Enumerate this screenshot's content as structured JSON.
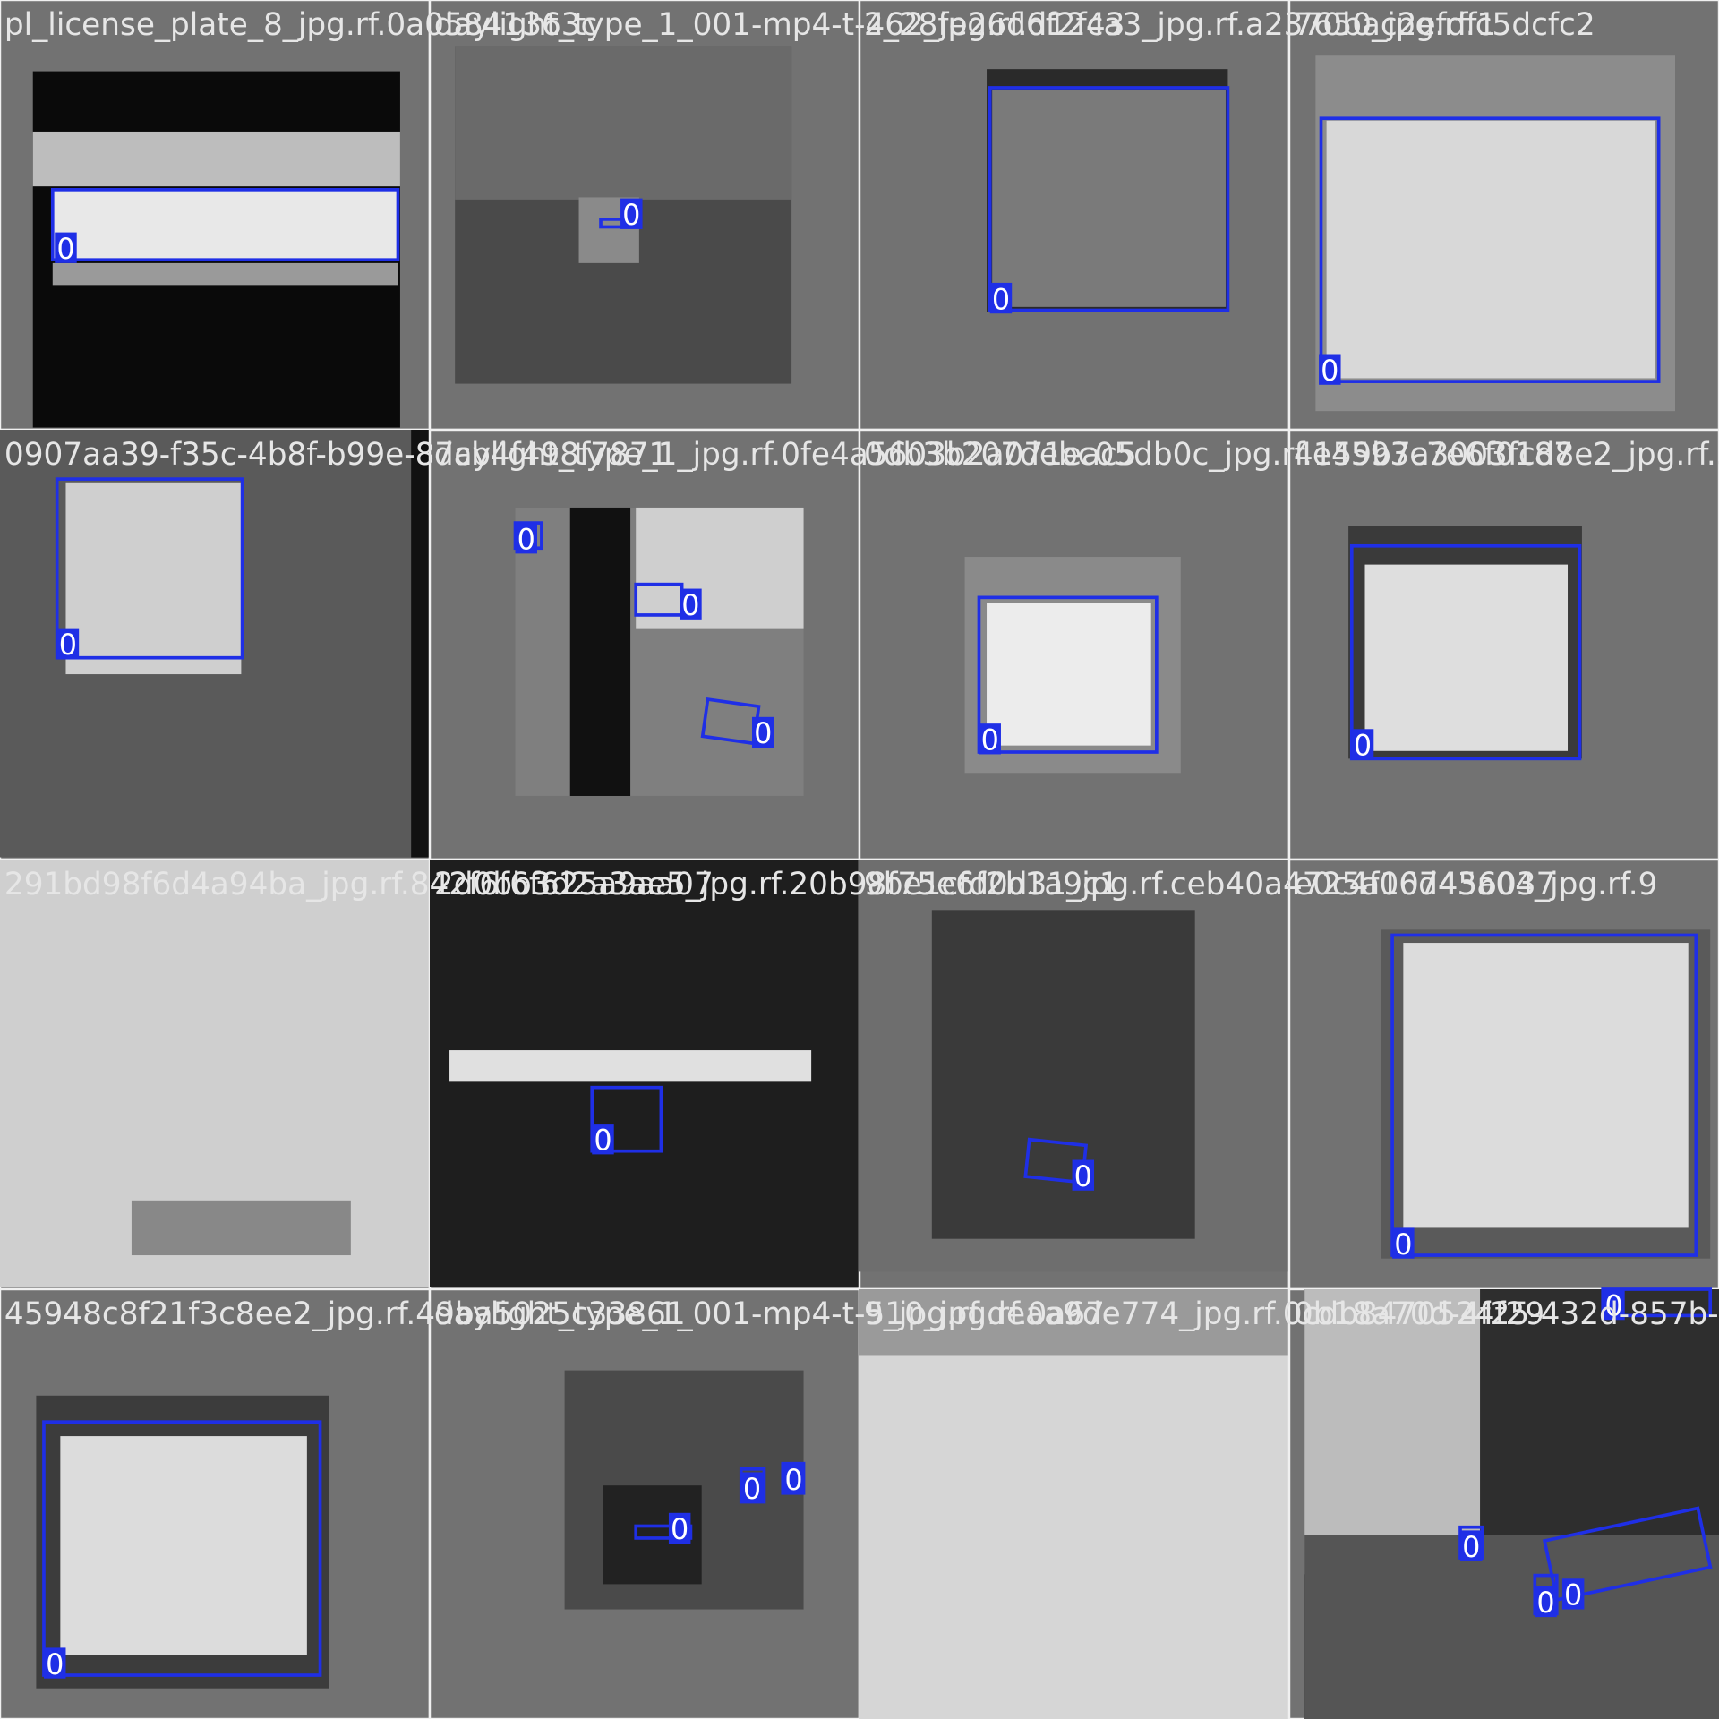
{
  "tiles": [
    {
      "filename": "pl_license_plate_8_jpg.rf.0a05841363c",
      "boxes": [
        {
          "label": "0"
        }
      ]
    },
    {
      "filename": "daylight_type_1_001-mp4-t-462_jpg.rf.d1243",
      "boxes": [
        {
          "label": "0"
        }
      ]
    },
    {
      "filename": "2_28fe26d6f2fca3_jpg.rf.a2370bac2efdf1",
      "boxes": [
        {
          "label": "0"
        }
      ]
    },
    {
      "filename": "7650_jpg.rf.c5dcfc2",
      "boxes": [
        {
          "label": "0"
        }
      ]
    },
    {
      "filename": "0907aa39-f35c-4b8f-b99e-87cb4f498f7871",
      "boxes": [
        {
          "label": "0"
        }
      ]
    },
    {
      "filename": "daylight_type_1_jpg.rf.0fe4a5603b2a071eac5",
      "boxes": [
        {
          "label": "0"
        },
        {
          "label": "0"
        },
        {
          "label": "0"
        }
      ]
    },
    {
      "filename": "0db3b207debc05db0c_jpg.rf.e4593c7e6f0187",
      "boxes": [
        {
          "label": "0"
        }
      ]
    },
    {
      "filename": "4159b7a3003fcd8e2_jpg.rf.3",
      "boxes": [
        {
          "label": "0"
        }
      ]
    },
    {
      "filename": "291bd98f6d4a94ba_jpg.rf.842f6f6f625a9aa07",
      "boxes": []
    },
    {
      "filename": "2d0bb3d2a3ae5_jpg.rf.20b98f75e6f2b1a9c1",
      "boxes": [
        {
          "label": "0"
        }
      ]
    },
    {
      "filename": "9be1cfd0d31_jpg.rf.ceb40a4725a107456037",
      "boxes": [
        {
          "label": "0"
        }
      ]
    },
    {
      "filename": "e0c4f06d43a04_jpg.rf.9",
      "boxes": [
        {
          "label": "0"
        }
      ]
    },
    {
      "filename": "45948c8f21f3c8ee2_jpg.rf.49ba5025c33861",
      "boxes": [
        {
          "label": "0"
        }
      ]
    },
    {
      "filename": "daylight_type_1_001-mp4-t-510_jpg.rf.0a67",
      "boxes": [
        {
          "label": "0"
        },
        {
          "label": "0"
        },
        {
          "label": "0"
        }
      ]
    },
    {
      "filename": "9_jpg.rf.deaa9de774_jpg.rf.0cdb8470524f29",
      "boxes": []
    },
    {
      "filename": "0b18a70d-4f25-432d-857b-c",
      "boxes": [
        {
          "label": "0"
        },
        {
          "label": "0"
        },
        {
          "label": "0"
        },
        {
          "label": "0"
        }
      ]
    }
  ]
}
